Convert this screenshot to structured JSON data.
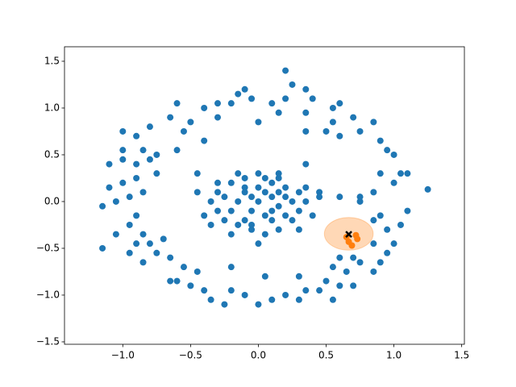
{
  "chart_data": {
    "type": "scatter",
    "xlim": [
      -1.43,
      1.52
    ],
    "ylim": [
      -1.526,
      1.655
    ],
    "xticks": [
      {
        "value": -1.0,
        "label": "−1.0"
      },
      {
        "value": -0.5,
        "label": "−0.5"
      },
      {
        "value": 0.0,
        "label": "0.0"
      },
      {
        "value": 0.5,
        "label": "0.5"
      },
      {
        "value": 1.0,
        "label": "1.0"
      },
      {
        "value": 1.5,
        "label": "1.5"
      }
    ],
    "yticks": [
      {
        "value": -1.5,
        "label": "−1.5"
      },
      {
        "value": -1.0,
        "label": "−1.0"
      },
      {
        "value": -0.5,
        "label": "−0.5"
      },
      {
        "value": 0.0,
        "label": "0.0"
      },
      {
        "value": 0.5,
        "label": "0.5"
      },
      {
        "value": 1.0,
        "label": "1.0"
      },
      {
        "value": 1.5,
        "label": "1.5"
      }
    ],
    "grid": false,
    "ellipse": {
      "center": [
        0.667,
        -0.345
      ],
      "width": 0.36,
      "height": 0.35,
      "color": "#ff7f0e",
      "alpha": 0.3
    },
    "series": [
      {
        "color": "#1f77b4",
        "marker": "o",
        "x": [
          0.2,
          0.25,
          0.35,
          0.2,
          0.1,
          -0.1,
          -0.15,
          -0.05,
          -0.2,
          -0.3,
          -0.4,
          -0.6,
          -0.65,
          -0.8,
          -0.9,
          -1.0,
          -0.55,
          -0.5,
          -0.3,
          0.0,
          0.15,
          0.35,
          0.4,
          0.55,
          0.6,
          0.7,
          0.75,
          0.85,
          0.9,
          0.95,
          1.0,
          0.5,
          0.35,
          0.6,
          0.55,
          -1.1,
          -1.0,
          -0.9,
          -0.8,
          -0.75,
          -0.9,
          -1.0,
          -1.1,
          -1.05,
          -0.95,
          -0.85,
          -0.9,
          -1.15,
          -0.95,
          -0.85,
          -1.05,
          -0.9,
          -0.8,
          -0.7,
          -1.15,
          -0.95,
          -0.85,
          -0.75,
          -0.65,
          -0.55,
          -0.6,
          -0.5,
          -0.4,
          -0.35,
          -0.25,
          -0.2,
          -0.1,
          0.0,
          0.1,
          0.2,
          0.3,
          0.35,
          0.45,
          0.5,
          0.55,
          0.6,
          0.65,
          0.7,
          0.75,
          0.85,
          0.9,
          0.95,
          1.0,
          0.85,
          0.95,
          1.05,
          1.1,
          0.9,
          0.85,
          0.75,
          0.85,
          0.9,
          1.0,
          1.05,
          1.1,
          1.25,
          0.75,
          -0.65,
          -0.45,
          -0.2,
          0.05,
          0.3,
          -0.75,
          -0.6,
          -0.4,
          -0.3,
          0.15,
          0.35,
          0.6,
          0.45,
          -0.45,
          -1.0,
          -0.85,
          0.7,
          0.6,
          0.55,
          -0.2,
          -0.1,
          0.0,
          0.1,
          0.2,
          0.3,
          0.35,
          0.3,
          0.25,
          0.15,
          0.05,
          -0.05,
          -0.15,
          -0.25,
          -0.3,
          -0.35,
          -0.3,
          -0.1,
          0.0,
          0.1,
          -0.05,
          0.05,
          0.15,
          -0.15,
          0.2,
          -0.2,
          0.0,
          -0.1,
          0.1,
          0.25,
          -0.25,
          0.05,
          -0.05,
          0.4,
          -0.4,
          0.15,
          -0.15,
          0.3,
          -0.2,
          0.0,
          0.45,
          -0.45,
          0.2,
          -0.1,
          0.1,
          0.35,
          -0.35,
          0.05,
          -0.05,
          0.15
        ],
        "values": [
          1.4,
          1.25,
          1.2,
          1.1,
          1.05,
          1.2,
          1.15,
          1.1,
          1.05,
          1.05,
          1.0,
          1.05,
          0.9,
          0.8,
          0.7,
          0.75,
          0.75,
          0.85,
          0.9,
          0.85,
          0.95,
          0.95,
          1.1,
          1.0,
          1.05,
          0.9,
          0.75,
          0.85,
          0.65,
          0.55,
          0.5,
          0.75,
          0.75,
          0.7,
          0.85,
          0.4,
          0.45,
          0.4,
          0.45,
          0.3,
          0.25,
          0.2,
          0.15,
          0.0,
          0.05,
          0.1,
          -0.15,
          -0.05,
          -0.25,
          -0.35,
          -0.35,
          -0.45,
          -0.45,
          -0.4,
          -0.5,
          -0.55,
          -0.65,
          -0.55,
          -0.6,
          -0.7,
          -0.85,
          -0.9,
          -0.95,
          -1.05,
          -1.1,
          -0.95,
          -1.0,
          -1.1,
          -1.05,
          -1.0,
          -1.05,
          -0.95,
          -0.95,
          -0.85,
          -1.05,
          -0.9,
          -0.75,
          -0.9,
          -0.65,
          -0.75,
          -0.65,
          -0.55,
          -0.45,
          -0.45,
          -0.3,
          -0.25,
          -0.1,
          -0.15,
          -0.2,
          0.0,
          0.1,
          0.3,
          0.2,
          0.3,
          0.3,
          0.13,
          0.05,
          -0.85,
          -0.75,
          -0.7,
          -0.8,
          -0.8,
          0.5,
          0.55,
          0.65,
          0.2,
          0.25,
          0.4,
          0.05,
          0.1,
          0.3,
          0.55,
          0.55,
          -0.6,
          -0.6,
          -0.7,
          0.2,
          0.25,
          0.3,
          0.2,
          0.15,
          0.1,
          0.0,
          -0.1,
          -0.2,
          -0.3,
          -0.35,
          -0.3,
          -0.25,
          -0.2,
          -0.1,
          0.0,
          0.1,
          0.1,
          0.0,
          0.05,
          -0.1,
          -0.15,
          -0.05,
          0.0,
          0.05,
          -0.1,
          0.15,
          -0.2,
          -0.2,
          0.0,
          0.05,
          0.1,
          0.05,
          -0.15,
          -0.15,
          0.3,
          0.3,
          -0.3,
          -0.35,
          -0.45,
          0.05,
          0.1,
          -0.15,
          0.15,
          -0.1,
          0.15,
          -0.25,
          0.25,
          -0.25,
          0.1
        ]
      },
      {
        "color": "#ff7f0e",
        "marker": "o",
        "x": [
          0.73,
          0.667,
          0.72,
          0.69,
          0.65
        ],
        "values": [
          -0.4,
          -0.43,
          -0.36,
          -0.47,
          -0.38
        ]
      },
      {
        "color": "#000000",
        "marker": "x",
        "x": [
          0.667
        ],
        "values": [
          -0.35
        ]
      }
    ]
  }
}
